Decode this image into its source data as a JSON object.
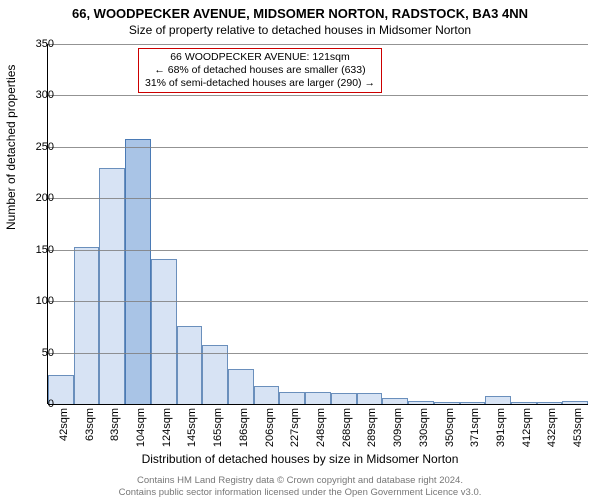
{
  "title_main": "66, WOODPECKER AVENUE, MIDSOMER NORTON, RADSTOCK, BA3 4NN",
  "title_sub": "Size of property relative to detached houses in Midsomer Norton",
  "ylabel": "Number of detached properties",
  "xlabel": "Distribution of detached houses by size in Midsomer Norton",
  "chart": {
    "type": "histogram",
    "ylim": [
      0,
      350
    ],
    "ytick_step": 50,
    "yticks": [
      0,
      50,
      100,
      150,
      200,
      250,
      300,
      350
    ],
    "xticks": [
      "42sqm",
      "63sqm",
      "83sqm",
      "104sqm",
      "124sqm",
      "145sqm",
      "165sqm",
      "186sqm",
      "206sqm",
      "227sqm",
      "248sqm",
      "268sqm",
      "289sqm",
      "309sqm",
      "330sqm",
      "350sqm",
      "371sqm",
      "391sqm",
      "412sqm",
      "432sqm",
      "453sqm"
    ],
    "values": [
      28,
      153,
      229,
      258,
      141,
      76,
      57,
      34,
      18,
      12,
      12,
      11,
      11,
      6,
      3,
      2,
      2,
      8,
      2,
      2,
      3
    ],
    "highlight_index": 3,
    "bar_color": "#d7e3f4",
    "bar_border": "#6a8fbc",
    "highlight_color": "#a9c4e6",
    "highlight_border": "#4a7ab5",
    "grid_color": "#808080",
    "background_color": "#ffffff",
    "bar_width_ratio": 1.0,
    "title_fontsize": 13,
    "subtitle_fontsize": 12,
    "axis_label_fontsize": 12,
    "tick_fontsize": 11
  },
  "annotation": {
    "border_color": "#cc0000",
    "background_color": "#ffffff",
    "fontsize": 10.5,
    "lines": [
      "66 WOODPECKER AVENUE: 121sqm",
      "← 68% of detached houses are smaller (633)",
      "31% of semi-detached houses are larger (290) →"
    ]
  },
  "footer": {
    "line1": "Contains HM Land Registry data © Crown copyright and database right 2024.",
    "line2": "Contains public sector information licensed under the Open Government Licence v3.0.",
    "color": "#777777",
    "fontsize": 9.5
  }
}
